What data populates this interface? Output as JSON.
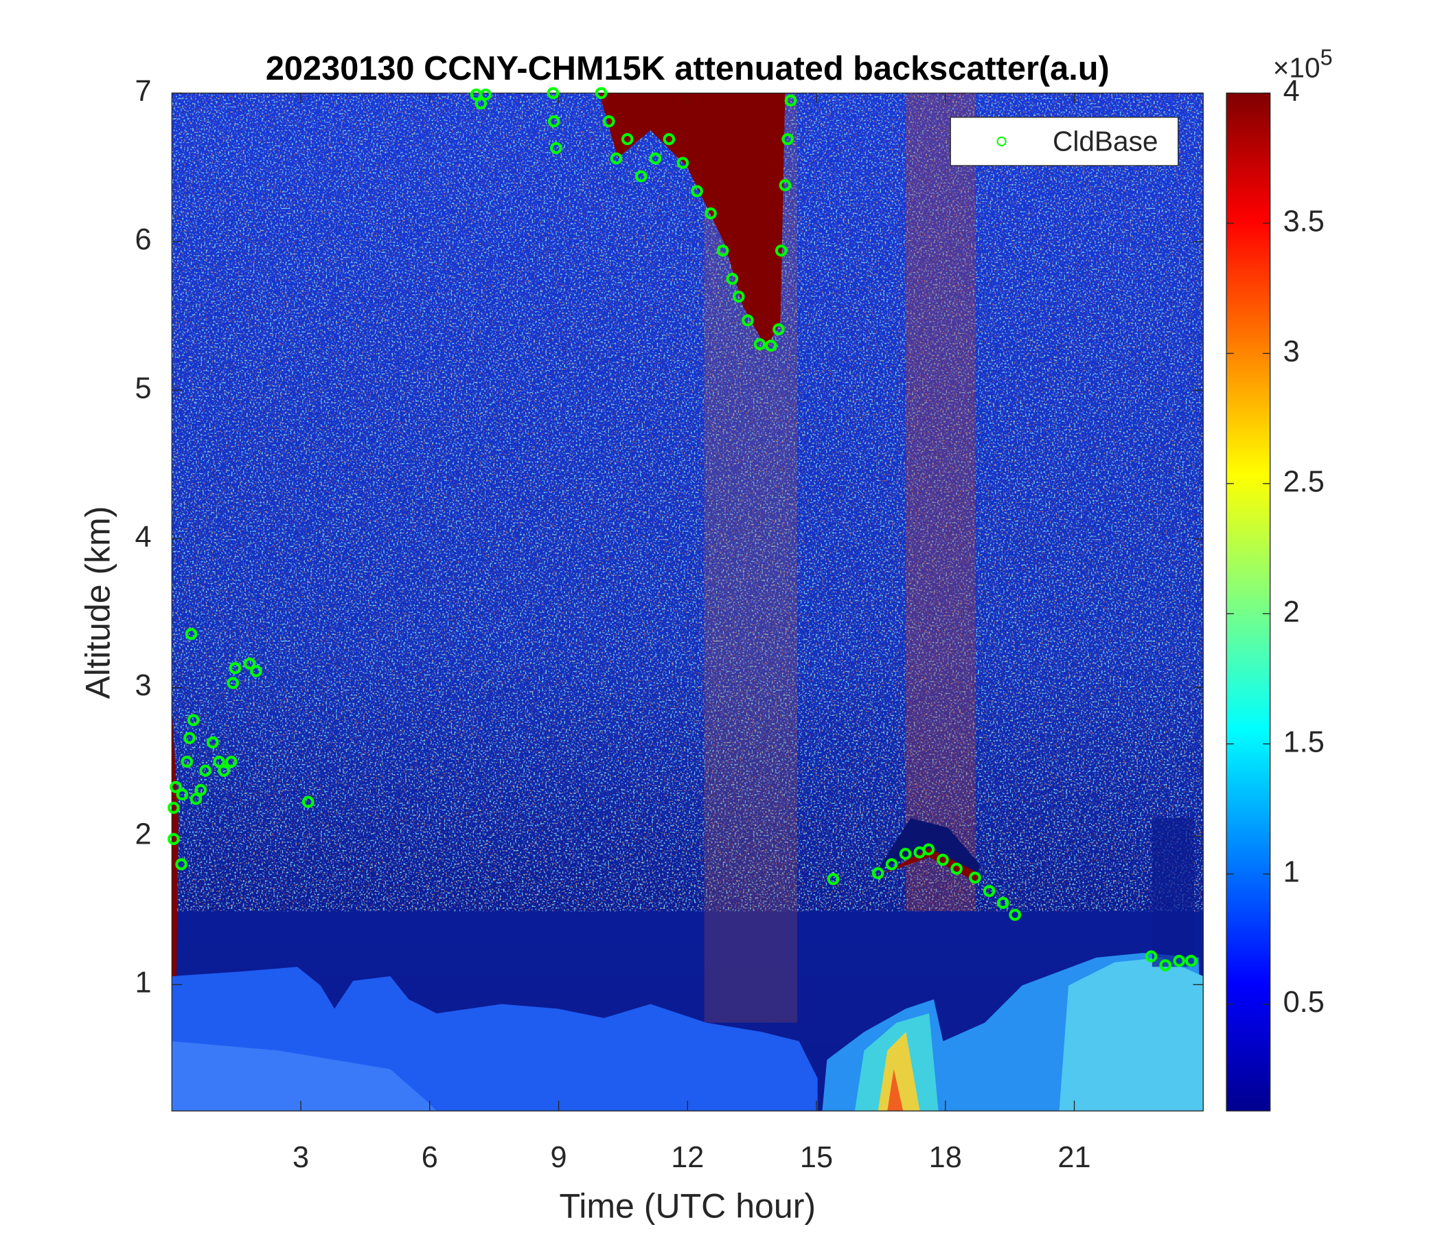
{
  "chart_data": {
    "type": "scatter",
    "title": "20230130 CCNY-CHM15K attenuated backscatter(a.u)",
    "x_label": "Time (UTC hour)",
    "y_label": "Altitude (km)",
    "xlim": [
      0,
      24
    ],
    "xticks": [
      3,
      6,
      9,
      12,
      15,
      18,
      21
    ],
    "ylim": [
      0.15,
      7
    ],
    "yticks": [
      1,
      2,
      3,
      4,
      5,
      6,
      7
    ],
    "legend": "upper right",
    "series": [
      {
        "name": "CldBase",
        "color": "#00ff00",
        "x": [
          0.04,
          0.04,
          0.09,
          0.22,
          0.24,
          0.35,
          0.41,
          0.45,
          0.5,
          0.56,
          0.67,
          0.78,
          0.95,
          1.1,
          1.21,
          1.38,
          1.42,
          1.47,
          1.81,
          1.96,
          3.17,
          7.08,
          7.19,
          7.3,
          8.87,
          8.89,
          8.94,
          9.99,
          10.17,
          10.34,
          10.6,
          10.92,
          11.25,
          11.57,
          11.89,
          12.22,
          12.54,
          12.82,
          13.04,
          13.19,
          13.4,
          13.68,
          13.94,
          14.12,
          14.18,
          14.27,
          14.33,
          14.4,
          15.39,
          16.43,
          16.75,
          17.07,
          17.4,
          17.61,
          17.94,
          18.26,
          18.69,
          19.02,
          19.34,
          19.62,
          22.79,
          23.12,
          23.44,
          23.72
        ],
        "values": [
          1.98,
          2.19,
          2.33,
          1.81,
          2.28,
          2.5,
          2.66,
          3.36,
          2.78,
          2.25,
          2.31,
          2.44,
          2.63,
          2.5,
          2.44,
          2.5,
          3.03,
          3.13,
          3.16,
          3.11,
          2.23,
          6.99,
          6.93,
          6.99,
          7.0,
          6.81,
          6.63,
          7.0,
          6.81,
          6.56,
          6.69,
          6.44,
          6.56,
          6.69,
          6.53,
          6.34,
          6.19,
          5.94,
          5.75,
          5.63,
          5.47,
          5.31,
          5.3,
          5.41,
          5.94,
          6.38,
          6.69,
          6.95,
          1.71,
          1.75,
          1.81,
          1.88,
          1.89,
          1.91,
          1.84,
          1.78,
          1.72,
          1.63,
          1.55,
          1.47,
          1.19,
          1.13,
          1.16,
          1.16
        ]
      }
    ],
    "colorbar": {
      "colormap": "jet",
      "lim": [
        0.09,
        4
      ],
      "ticks": [
        0.5,
        1,
        1.5,
        2,
        2.5,
        3,
        3.5,
        4
      ],
      "multiplier": "×10",
      "exponent": "5"
    }
  }
}
